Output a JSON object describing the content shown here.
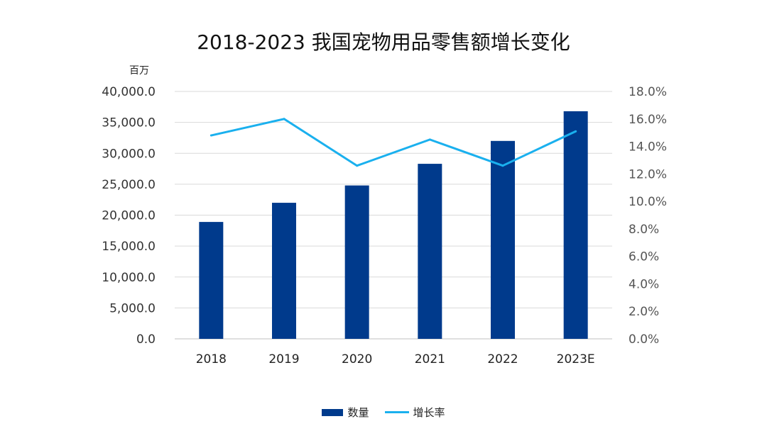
{
  "chart_data": {
    "type": "bar+line",
    "title": "2018-2023 我国宠物用品零售额增长变化",
    "unit_label": "百万",
    "categories": [
      "2018",
      "2019",
      "2020",
      "2021",
      "2022",
      "2023E"
    ],
    "series": [
      {
        "name": "数量",
        "type": "bar",
        "axis": "left",
        "color": "#003a8c",
        "values": [
          18900,
          22000,
          24800,
          28300,
          32000,
          36800
        ]
      },
      {
        "name": "增长率",
        "type": "line",
        "axis": "right",
        "color": "#1ab0ee",
        "values": [
          14.8,
          16.0,
          12.6,
          14.5,
          12.6,
          15.1
        ]
      }
    ],
    "left_axis": {
      "ylim": [
        0,
        40000
      ],
      "ticks": [
        "0.0",
        "5,000.0",
        "10,000.0",
        "15,000.0",
        "20,000.0",
        "25,000.0",
        "30,000.0",
        "35,000.0",
        "40,000.0"
      ]
    },
    "right_axis": {
      "ylim": [
        0,
        18
      ],
      "ticks": [
        "0.0%",
        "2.0%",
        "4.0%",
        "6.0%",
        "8.0%",
        "10.0%",
        "12.0%",
        "14.0%",
        "16.0%",
        "18.0%"
      ]
    },
    "legend_position": "bottom-center"
  }
}
